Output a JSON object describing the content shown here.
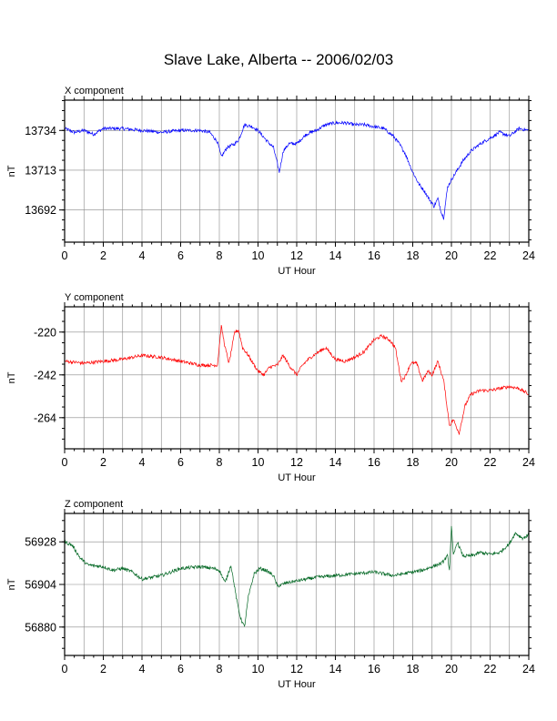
{
  "title": "Slave Lake, Alberta -- 2006/02/03",
  "colors": {
    "x": "#0000ff",
    "y": "#ff0000",
    "z": "#006622",
    "grid": "#888888"
  },
  "chart_data": [
    {
      "type": "line",
      "panel_label": "X component",
      "xlabel": "UT Hour",
      "ylabel": "nT",
      "xlim": [
        0,
        24
      ],
      "ylim": [
        13675,
        13750
      ],
      "x_ticks": [
        0,
        2,
        4,
        6,
        8,
        10,
        12,
        14,
        16,
        18,
        20,
        22,
        24
      ],
      "y_ticks": [
        13734,
        13713,
        13692
      ],
      "grid": true,
      "color": "#0000ff",
      "series": [
        {
          "x": [
            0,
            0.5,
            1,
            1.5,
            2,
            3,
            4,
            5,
            6,
            7,
            7.5,
            7.9,
            8.1,
            8.4,
            8.8,
            9,
            9.3,
            9.7,
            10,
            10.5,
            10.8,
            11.1,
            11.3,
            11.6,
            12,
            12.5,
            13,
            13.5,
            14,
            14.5,
            15,
            15.5,
            16,
            16.5,
            17,
            17.3,
            17.6,
            18,
            18.3,
            18.6,
            18.9,
            19.1,
            19.3,
            19.5,
            19.6,
            19.8,
            20,
            20.3,
            20.6,
            21,
            21.5,
            22,
            22.5,
            23,
            23.5,
            24
          ],
          "y": [
            13735,
            13733,
            13734,
            13732,
            13735,
            13735,
            13734,
            13733,
            13734,
            13734,
            13733,
            13728,
            13720,
            13725,
            13727,
            13729,
            13737,
            13736,
            13734,
            13728,
            13725,
            13712,
            13723,
            13727,
            13727,
            13732,
            13734,
            13737,
            13738,
            13738,
            13737,
            13737,
            13736,
            13735,
            13731,
            13727,
            13722,
            13712,
            13706,
            13702,
            13697,
            13694,
            13698,
            13690,
            13688,
            13704,
            13708,
            13713,
            13718,
            13723,
            13727,
            13730,
            13733,
            13731,
            13735,
            13734
          ]
        }
      ]
    },
    {
      "type": "line",
      "panel_label": "Y component",
      "xlabel": "UT Hour",
      "ylabel": "nT",
      "xlim": [
        0,
        24
      ],
      "ylim": [
        -280,
        -207
      ],
      "x_ticks": [
        0,
        2,
        4,
        6,
        8,
        10,
        12,
        14,
        16,
        18,
        20,
        22,
        24
      ],
      "y_ticks": [
        -220,
        -242,
        -264
      ],
      "grid": true,
      "color": "#ff0000",
      "series": [
        {
          "x": [
            0,
            1,
            2,
            3,
            4,
            5,
            6,
            7,
            7.9,
            8.1,
            8.3,
            8.5,
            8.8,
            9,
            9.2,
            9.5,
            9.8,
            10,
            10.3,
            10.6,
            11,
            11.3,
            11.6,
            12,
            12.3,
            12.6,
            13,
            13.5,
            14,
            14.5,
            15,
            15.5,
            16,
            16.4,
            16.8,
            17.1,
            17.4,
            17.6,
            17.9,
            18.2,
            18.5,
            18.8,
            19,
            19.3,
            19.6,
            19.9,
            20.1,
            20.4,
            20.7,
            21,
            21.5,
            22,
            22.5,
            23,
            23.5,
            24
          ],
          "y": [
            -235,
            -236,
            -235,
            -234,
            -232,
            -233,
            -235,
            -237,
            -237,
            -217,
            -228,
            -236,
            -220,
            -219,
            -228,
            -232,
            -237,
            -240,
            -242,
            -238,
            -237,
            -232,
            -237,
            -242,
            -237,
            -234,
            -231,
            -228,
            -234,
            -235,
            -233,
            -230,
            -224,
            -222,
            -224,
            -228,
            -245,
            -243,
            -236,
            -236,
            -245,
            -240,
            -242,
            -235,
            -245,
            -268,
            -265,
            -272,
            -258,
            -252,
            -250,
            -250,
            -249,
            -248,
            -249,
            -252
          ]
        }
      ]
    },
    {
      "type": "line",
      "panel_label": "Z component",
      "xlabel": "UT Hour",
      "ylabel": "nT",
      "xlim": [
        0,
        24
      ],
      "ylim": [
        56864,
        56944
      ],
      "x_ticks": [
        0,
        2,
        4,
        6,
        8,
        10,
        12,
        14,
        16,
        18,
        20,
        22,
        24
      ],
      "y_ticks": [
        56928,
        56904,
        56880
      ],
      "grid": true,
      "color": "#006622",
      "series": [
        {
          "x": [
            0,
            0.4,
            0.8,
            1.2,
            2,
            2.5,
            3,
            3.5,
            4,
            5,
            6,
            7,
            7.7,
            8,
            8.3,
            8.6,
            8.9,
            9.1,
            9.3,
            9.5,
            9.8,
            10.1,
            10.4,
            10.8,
            11,
            11.5,
            12,
            13,
            14,
            15,
            16,
            17,
            17.5,
            18,
            18.5,
            19,
            19.5,
            19.8,
            19.9,
            20,
            20.1,
            20.3,
            20.6,
            21,
            21.5,
            22,
            22.5,
            23,
            23.3,
            23.7,
            24
          ],
          "y": [
            56928,
            56926,
            56919,
            56915,
            56914,
            56912,
            56913,
            56911,
            56907,
            56909,
            56913,
            56914,
            56913,
            56912,
            56905,
            56915,
            56895,
            56885,
            56880,
            56897,
            56910,
            56913,
            56912,
            56909,
            56903,
            56905,
            56906,
            56908,
            56909,
            56910,
            56911,
            56909,
            56910,
            56911,
            56912,
            56914,
            56916,
            56920,
            56912,
            56937,
            56920,
            56928,
            56920,
            56920,
            56922,
            56921,
            56922,
            56927,
            56933,
            56930,
            56932
          ]
        }
      ]
    }
  ]
}
